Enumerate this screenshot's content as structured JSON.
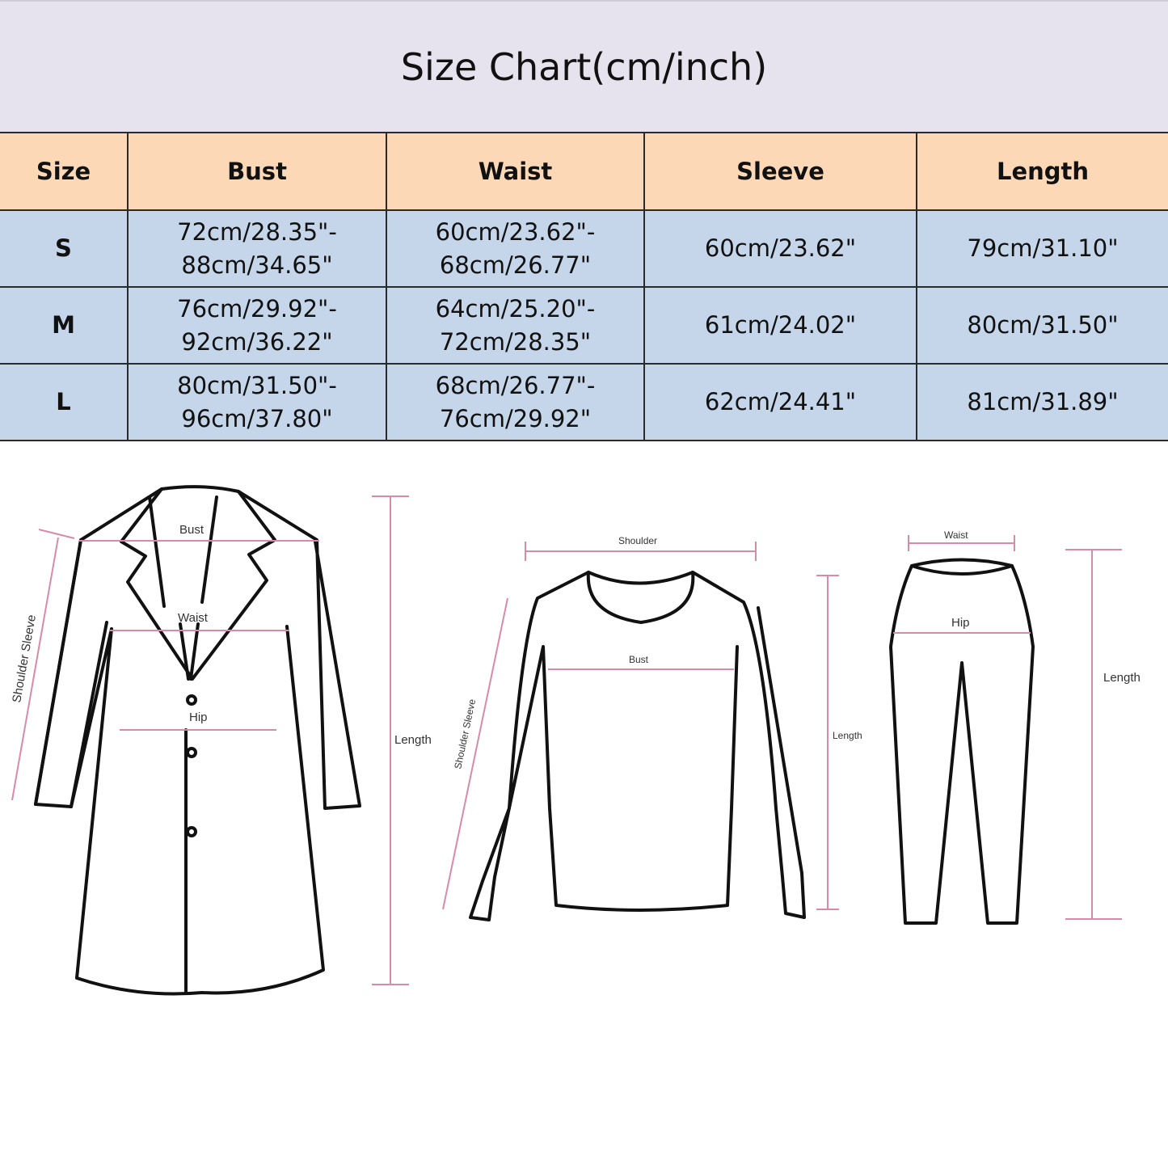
{
  "title": "Size Chart(cm/inch)",
  "colors": {
    "title_bg": "#e6e2ee",
    "header_bg": "#fcd8b6",
    "row_bg": "#c6d6ea",
    "measure_line": "#d98aa8"
  },
  "table": {
    "headers": [
      "Size",
      "Bust",
      "Waist",
      "Sleeve",
      "Length"
    ],
    "rows": [
      {
        "size": "S",
        "bust_1": "72cm/28.35\"-",
        "bust_2": "88cm/34.65\"",
        "waist_1": "60cm/23.62\"-",
        "waist_2": "68cm/26.77\"",
        "sleeve": "60cm/23.62\"",
        "length": "79cm/31.10\""
      },
      {
        "size": "M",
        "bust_1": "76cm/29.92\"-",
        "bust_2": "92cm/36.22\"",
        "waist_1": "64cm/25.20\"-",
        "waist_2": "72cm/28.35\"",
        "sleeve": "61cm/24.02\"",
        "length": "80cm/31.50\""
      },
      {
        "size": "L",
        "bust_1": "80cm/31.50\"-",
        "bust_2": "96cm/37.80\"",
        "waist_1": "68cm/26.77\"-",
        "waist_2": "76cm/29.92\"",
        "sleeve": "62cm/24.41\"",
        "length": "81cm/31.89\""
      }
    ]
  },
  "diagrams": {
    "coat": {
      "bust": "Bust",
      "waist": "Waist",
      "hip": "Hip",
      "sleeve": "Shoulder Sleeve",
      "length": "Length"
    },
    "sweater": {
      "shoulder": "Shoulder",
      "bust": "Bust",
      "sleeve": "Shoulder Sleeve",
      "length": "Length"
    },
    "pants": {
      "waist": "Waist",
      "hip": "Hip",
      "length": "Length"
    }
  }
}
